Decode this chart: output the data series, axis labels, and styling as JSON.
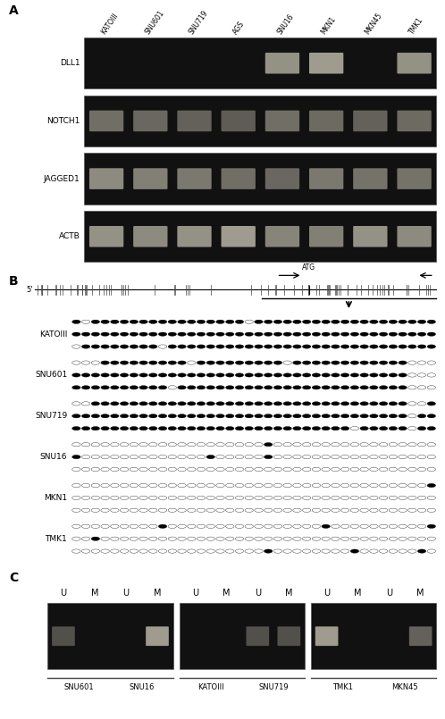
{
  "panel_A": {
    "label": "A",
    "gel_labels": [
      "KATOIII",
      "SNU601",
      "SNU719",
      "AGS",
      "SNU16",
      "MKN1",
      "MKN45",
      "TMK1"
    ],
    "row_labels": [
      "DLL1",
      "NOTCH1",
      "JAGGED1",
      "ACTB"
    ],
    "band_brightness": {
      "DLL1": [
        0,
        0,
        0,
        0,
        0.82,
        0.88,
        0,
        0.82
      ],
      "NOTCH1": [
        0.62,
        0.58,
        0.55,
        0.52,
        0.62,
        0.6,
        0.55,
        0.6
      ],
      "JAGGED1": [
        0.78,
        0.72,
        0.68,
        0.62,
        0.58,
        0.68,
        0.65,
        0.65
      ],
      "ACTB": [
        0.82,
        0.78,
        0.82,
        0.88,
        0.75,
        0.72,
        0.82,
        0.78
      ]
    }
  },
  "panel_B": {
    "label": "B",
    "cell_lines": [
      "KATOIII",
      "SNU601",
      "SNU719",
      "SNU16",
      "MKN1",
      "TMK1"
    ],
    "n_cpg": 38,
    "n_clones": 3,
    "methylation": {
      "KATOIII": [
        [
          1,
          0,
          1,
          1,
          1,
          1,
          1,
          1,
          1,
          1,
          1,
          1,
          1,
          1,
          1,
          1,
          1,
          1,
          0,
          1,
          1,
          1,
          1,
          1,
          1,
          1,
          1,
          1,
          1,
          1,
          1,
          1,
          1,
          1,
          1,
          1,
          1,
          1
        ],
        [
          1,
          1,
          1,
          1,
          1,
          1,
          1,
          1,
          1,
          1,
          1,
          1,
          1,
          1,
          1,
          1,
          1,
          1,
          1,
          1,
          1,
          1,
          1,
          1,
          1,
          1,
          1,
          1,
          1,
          1,
          1,
          1,
          1,
          1,
          1,
          1,
          1,
          1
        ],
        [
          0,
          1,
          1,
          1,
          1,
          1,
          1,
          1,
          1,
          0,
          1,
          1,
          1,
          1,
          1,
          1,
          1,
          1,
          1,
          1,
          1,
          1,
          1,
          1,
          1,
          1,
          1,
          1,
          1,
          1,
          1,
          1,
          1,
          1,
          1,
          1,
          1,
          1
        ]
      ],
      "SNU601": [
        [
          0,
          0,
          0,
          1,
          1,
          1,
          1,
          1,
          1,
          1,
          1,
          1,
          0,
          1,
          1,
          1,
          1,
          1,
          1,
          1,
          1,
          1,
          0,
          1,
          1,
          1,
          1,
          1,
          1,
          1,
          1,
          1,
          1,
          1,
          1,
          0,
          0,
          0
        ],
        [
          1,
          1,
          1,
          1,
          1,
          1,
          1,
          1,
          1,
          1,
          1,
          1,
          1,
          1,
          1,
          1,
          1,
          1,
          1,
          1,
          1,
          1,
          1,
          1,
          1,
          1,
          1,
          1,
          1,
          1,
          1,
          1,
          1,
          1,
          1,
          0,
          0,
          0
        ],
        [
          1,
          1,
          1,
          1,
          1,
          1,
          1,
          1,
          1,
          1,
          0,
          1,
          1,
          1,
          1,
          1,
          1,
          1,
          1,
          1,
          1,
          1,
          1,
          1,
          1,
          1,
          1,
          1,
          1,
          1,
          1,
          1,
          1,
          1,
          1,
          0,
          0,
          0
        ]
      ],
      "SNU719": [
        [
          0,
          0,
          1,
          1,
          1,
          1,
          1,
          1,
          1,
          1,
          1,
          1,
          1,
          1,
          1,
          1,
          1,
          1,
          1,
          1,
          1,
          1,
          1,
          1,
          1,
          1,
          1,
          1,
          1,
          1,
          1,
          1,
          1,
          1,
          1,
          0,
          0,
          1
        ],
        [
          1,
          1,
          1,
          1,
          1,
          1,
          1,
          1,
          1,
          1,
          1,
          1,
          1,
          1,
          1,
          1,
          1,
          1,
          1,
          1,
          1,
          1,
          1,
          1,
          1,
          1,
          1,
          1,
          1,
          1,
          1,
          1,
          1,
          1,
          1,
          0,
          1,
          1
        ],
        [
          1,
          1,
          1,
          1,
          1,
          1,
          1,
          1,
          1,
          1,
          1,
          1,
          1,
          1,
          1,
          1,
          1,
          1,
          1,
          1,
          1,
          1,
          1,
          1,
          1,
          1,
          1,
          1,
          1,
          0,
          1,
          1,
          1,
          1,
          1,
          0,
          1,
          1
        ]
      ],
      "SNU16": [
        [
          0,
          0,
          0,
          0,
          0,
          0,
          0,
          0,
          0,
          0,
          0,
          0,
          0,
          0,
          0,
          0,
          0,
          0,
          0,
          0,
          1,
          0,
          0,
          0,
          0,
          0,
          0,
          0,
          0,
          0,
          0,
          0,
          0,
          0,
          0,
          0,
          0,
          0
        ],
        [
          1,
          0,
          0,
          0,
          0,
          0,
          0,
          0,
          0,
          0,
          0,
          0,
          0,
          0,
          1,
          0,
          0,
          0,
          0,
          0,
          1,
          0,
          0,
          0,
          0,
          0,
          0,
          0,
          0,
          0,
          0,
          0,
          0,
          0,
          0,
          0,
          0,
          0
        ],
        [
          0,
          0,
          0,
          0,
          0,
          0,
          0,
          0,
          0,
          0,
          0,
          0,
          0,
          0,
          0,
          0,
          0,
          0,
          0,
          0,
          0,
          0,
          0,
          0,
          0,
          0,
          0,
          0,
          0,
          0,
          0,
          0,
          0,
          0,
          0,
          0,
          0,
          0
        ]
      ],
      "MKN1": [
        [
          0,
          0,
          0,
          0,
          0,
          0,
          0,
          0,
          0,
          0,
          0,
          0,
          0,
          0,
          0,
          0,
          0,
          0,
          0,
          0,
          0,
          0,
          0,
          0,
          0,
          0,
          0,
          0,
          0,
          0,
          0,
          0,
          0,
          0,
          0,
          0,
          0,
          1
        ],
        [
          0,
          0,
          0,
          0,
          0,
          0,
          0,
          0,
          0,
          0,
          0,
          0,
          0,
          0,
          0,
          0,
          0,
          0,
          0,
          0,
          0,
          0,
          0,
          0,
          0,
          0,
          0,
          0,
          0,
          0,
          0,
          0,
          0,
          0,
          0,
          0,
          0,
          0
        ],
        [
          0,
          0,
          0,
          0,
          0,
          0,
          0,
          0,
          0,
          0,
          0,
          0,
          0,
          0,
          0,
          0,
          0,
          0,
          0,
          0,
          0,
          0,
          0,
          0,
          0,
          0,
          0,
          0,
          0,
          0,
          0,
          0,
          0,
          0,
          0,
          0,
          0,
          0
        ]
      ],
      "TMK1": [
        [
          0,
          0,
          0,
          0,
          0,
          0,
          0,
          0,
          0,
          1,
          0,
          0,
          0,
          0,
          0,
          0,
          0,
          0,
          0,
          0,
          0,
          0,
          0,
          0,
          0,
          0,
          1,
          0,
          0,
          0,
          0,
          0,
          0,
          0,
          0,
          0,
          0,
          1
        ],
        [
          0,
          0,
          1,
          0,
          0,
          0,
          0,
          0,
          0,
          0,
          0,
          0,
          0,
          0,
          0,
          0,
          0,
          0,
          0,
          0,
          0,
          0,
          0,
          0,
          0,
          0,
          0,
          0,
          0,
          0,
          0,
          0,
          0,
          0,
          0,
          0,
          0,
          0
        ],
        [
          0,
          0,
          0,
          0,
          0,
          0,
          0,
          0,
          0,
          0,
          0,
          0,
          0,
          0,
          0,
          0,
          0,
          0,
          0,
          0,
          1,
          0,
          0,
          0,
          0,
          0,
          0,
          0,
          0,
          1,
          0,
          0,
          0,
          0,
          0,
          0,
          1,
          0
        ]
      ]
    }
  },
  "panel_C": {
    "label": "C",
    "gel_groups": [
      {
        "cells": [
          "SNU601",
          "SNU16"
        ]
      },
      {
        "cells": [
          "KATOIII",
          "SNU719"
        ]
      },
      {
        "cells": [
          "TMK1",
          "MKN45"
        ]
      }
    ],
    "bands_C": {
      "SNU601": {
        "U": 0.45,
        "M": 0.0
      },
      "SNU16": {
        "U": 0.0,
        "M": 0.88
      },
      "KATOIII": {
        "U": 0.0,
        "M": 0.0
      },
      "SNU719": {
        "U": 0.45,
        "M": 0.45
      },
      "TMK1": {
        "U": 0.88,
        "M": 0.0
      },
      "MKN45": {
        "U": 0.0,
        "M": 0.55
      }
    }
  },
  "bg_color": "#ffffff",
  "gel_bg": "#111111"
}
